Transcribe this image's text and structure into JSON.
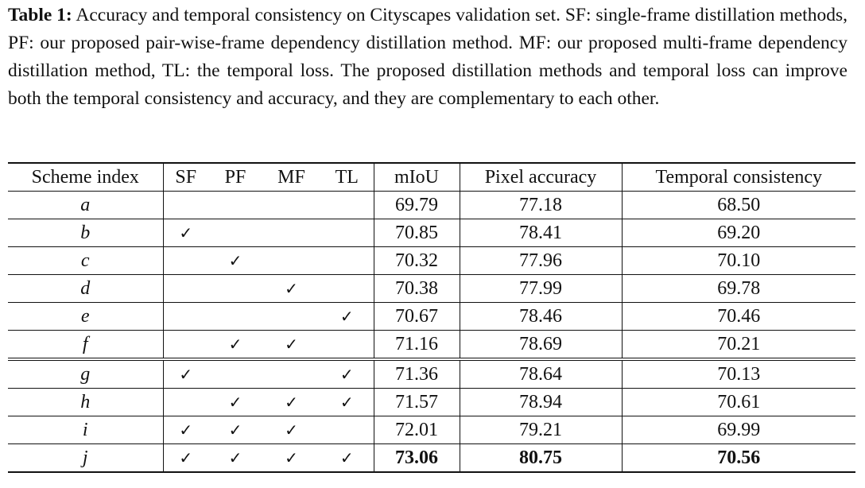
{
  "caption": {
    "label": "Table 1:",
    "text": "Accuracy and temporal consistency on Cityscapes validation set. SF: single-frame distillation methods, PF: our proposed pair-wise-frame dependency distillation method. MF: our proposed multi-frame dependency distillation method, TL: the temporal loss. The proposed distillation methods and temporal loss can improve both the temporal consistency and accuracy, and they are complementary to each other."
  },
  "table": {
    "header": [
      "Scheme index",
      "SF",
      "PF",
      "MF",
      "TL",
      "mIoU",
      "Pixel accuracy",
      "Temporal consistency"
    ],
    "groups": [
      [
        {
          "cells": [
            "a",
            null,
            null,
            null,
            null,
            "69.79",
            "77.18",
            "68.50"
          ]
        },
        {
          "cells": [
            "b",
            "✓",
            null,
            null,
            null,
            "70.85",
            "78.41",
            "69.20"
          ]
        },
        {
          "cells": [
            "c",
            null,
            "✓",
            null,
            null,
            "70.32",
            "77.96",
            "70.10"
          ]
        },
        {
          "cells": [
            "d",
            null,
            null,
            "✓",
            null,
            "70.38",
            "77.99",
            "69.78"
          ]
        },
        {
          "cells": [
            "e",
            null,
            null,
            null,
            "✓",
            "70.67",
            "78.46",
            "70.46"
          ]
        },
        {
          "cells": [
            "f",
            null,
            "✓",
            "✓",
            null,
            "71.16",
            "78.69",
            "70.21"
          ]
        }
      ],
      [
        {
          "cells": [
            "g",
            "✓",
            null,
            null,
            "✓",
            "71.36",
            "78.64",
            "70.13"
          ]
        },
        {
          "cells": [
            "h",
            null,
            "✓",
            "✓",
            "✓",
            "71.57",
            "78.94",
            "70.61"
          ]
        },
        {
          "cells": [
            "i",
            "✓",
            "✓",
            "✓",
            null,
            "72.01",
            "79.21",
            "69.99"
          ]
        },
        {
          "cells": [
            "j",
            "✓",
            "✓",
            "✓",
            "✓",
            "73.06",
            "80.75",
            "70.56"
          ],
          "bold": true
        }
      ]
    ]
  }
}
